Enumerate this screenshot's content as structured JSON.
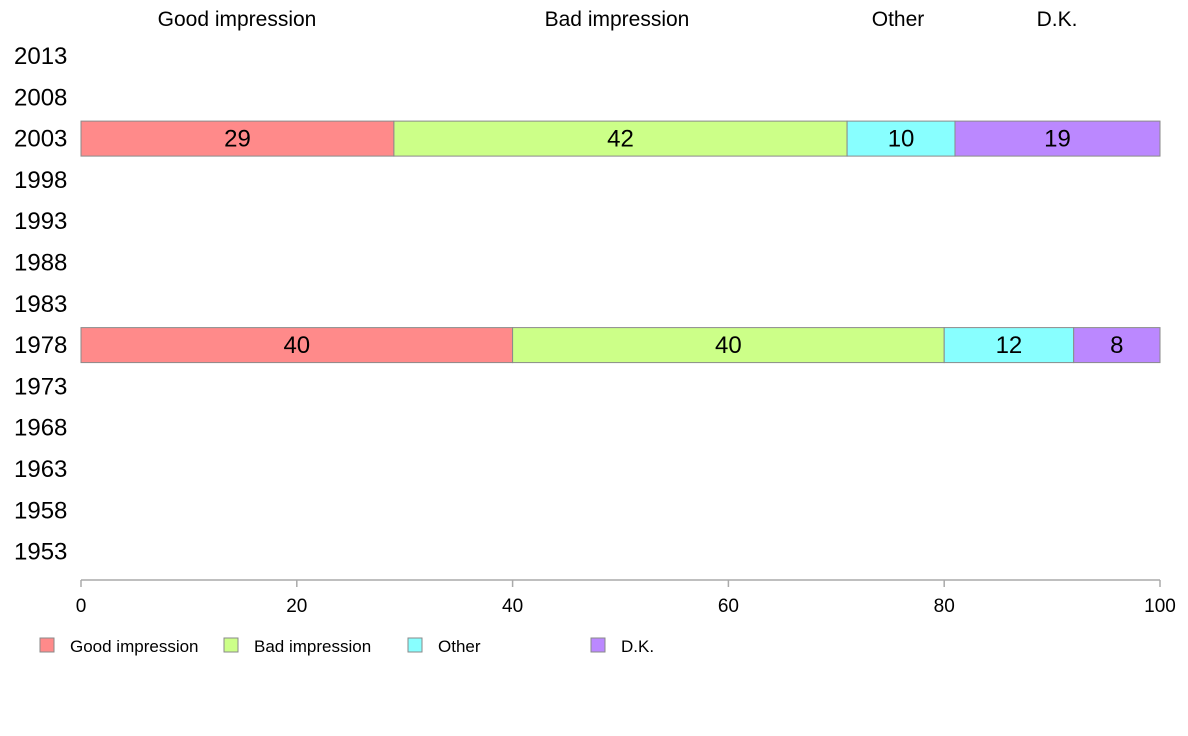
{
  "chart_data": {
    "type": "bar",
    "orientation": "horizontal",
    "stacked": true,
    "categories": [
      "2013",
      "2008",
      "2003",
      "1998",
      "1993",
      "1988",
      "1983",
      "1978",
      "1973",
      "1968",
      "1963",
      "1958",
      "1953"
    ],
    "series": [
      {
        "name": "Good impression",
        "color": "#ff8a8a",
        "values": [
          null,
          null,
          29,
          null,
          null,
          null,
          null,
          40,
          null,
          null,
          null,
          null,
          null
        ]
      },
      {
        "name": "Bad impression",
        "color": "#ccff88",
        "values": [
          null,
          null,
          42,
          null,
          null,
          null,
          null,
          40,
          null,
          null,
          null,
          null,
          null
        ]
      },
      {
        "name": "Other",
        "color": "#88ffff",
        "values": [
          null,
          null,
          10,
          null,
          null,
          null,
          null,
          12,
          null,
          null,
          null,
          null,
          null
        ]
      },
      {
        "name": "D.K.",
        "color": "#bb88ff",
        "values": [
          null,
          null,
          19,
          null,
          null,
          null,
          null,
          8,
          null,
          null,
          null,
          null,
          null
        ]
      }
    ],
    "xlim": [
      0,
      100
    ],
    "xticks": [
      "0",
      "20",
      "40",
      "60",
      "80",
      "100"
    ],
    "top_labels": [
      "Good impression",
      "Bad impression",
      "Other",
      "D.K."
    ],
    "legend": [
      "Good impression",
      "Bad impression",
      "Other",
      "D.K."
    ],
    "legend_position": "bottom",
    "grid": false
  }
}
